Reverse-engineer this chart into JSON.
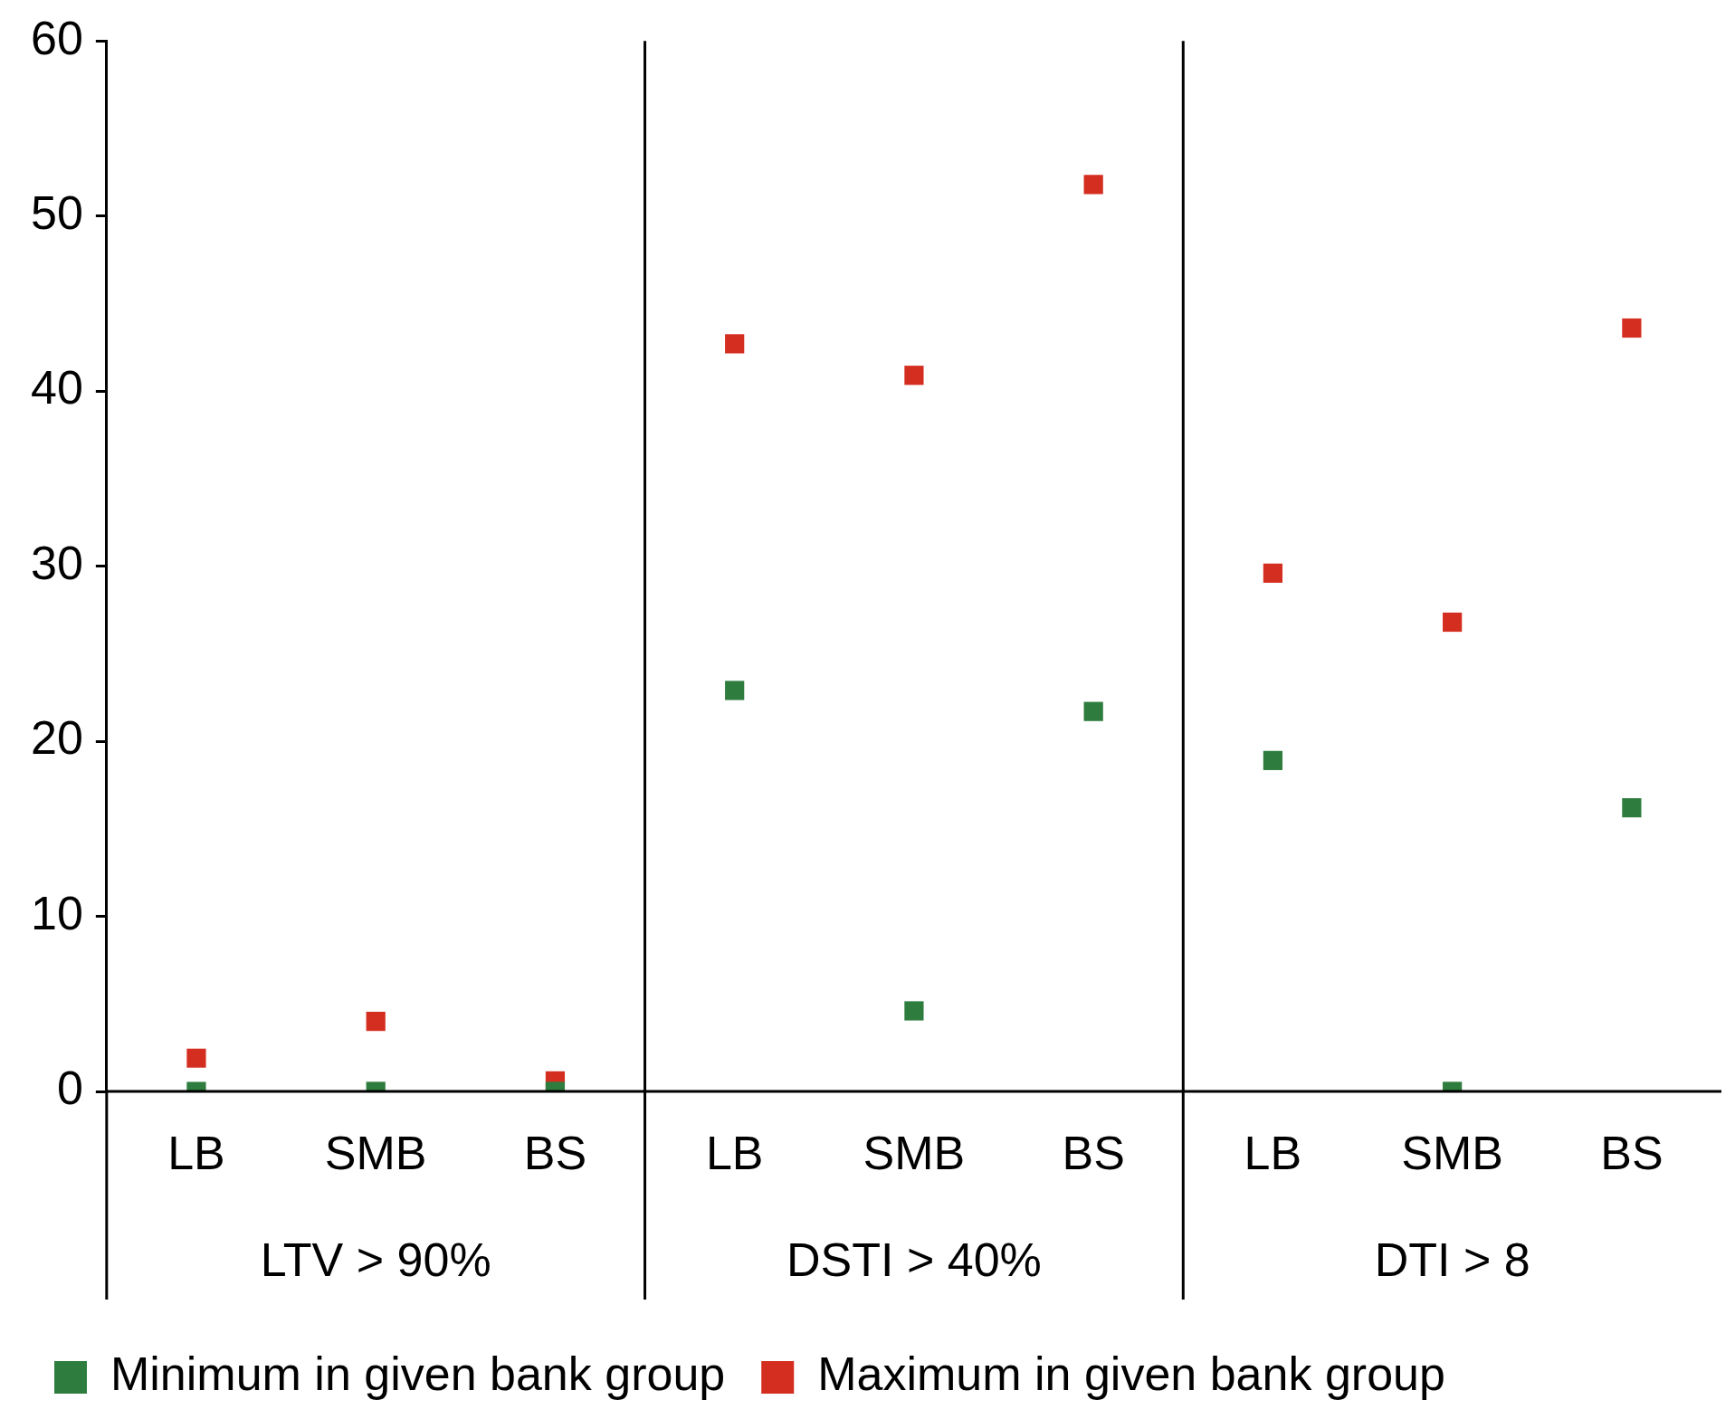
{
  "chart_data": {
    "type": "scatter",
    "categories": [
      "LB",
      "SMB",
      "BS",
      "LB",
      "SMB",
      "BS",
      "LB",
      "SMB",
      "BS"
    ],
    "annotations": [
      "LTV > 90%",
      "DSTI > 40%",
      "DTI > 8"
    ],
    "series": [
      {
        "name": "Minimum in given bank group",
        "color": "#2e7d3e",
        "values": [
          0,
          0,
          0,
          22.9,
          4.6,
          21.7,
          18.9,
          0,
          16.2
        ]
      },
      {
        "name": "Maximum in given bank group",
        "color": "#d42e20",
        "values": [
          1.9,
          4,
          0.6,
          42.7,
          40.9,
          51.8,
          29.6,
          26.8,
          43.6
        ]
      }
    ],
    "marker": "square",
    "ylim": [
      0,
      60
    ],
    "yticks": [
      0,
      10,
      20,
      30,
      40,
      50,
      60
    ],
    "grid": false,
    "legend": "bottom"
  }
}
